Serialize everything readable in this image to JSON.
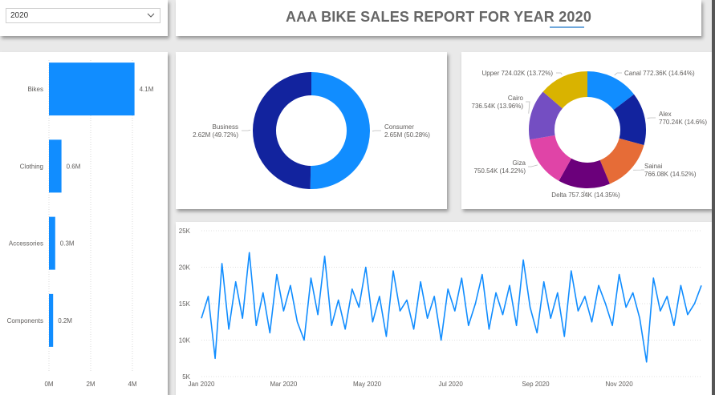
{
  "filter": {
    "selected_value": "2020"
  },
  "report_title": "AAA BIKE SALES REPORT FOR YEAR 2020",
  "colors": {
    "bar": "#118dff",
    "line": "#118dff",
    "consumer": "#118dff",
    "business": "#12239e"
  },
  "chart_data": [
    {
      "type": "bar",
      "orientation": "horizontal",
      "categories": [
        "Bikes",
        "Clothing",
        "Accessories",
        "Components"
      ],
      "values": [
        4.1,
        0.6,
        0.3,
        0.2
      ],
      "value_labels": [
        "4.1M",
        "0.6M",
        "0.3M",
        "0.2M"
      ],
      "x_ticks": [
        "0M",
        "2M",
        "4M"
      ],
      "xlim": [
        0,
        4
      ],
      "grid": true
    },
    {
      "type": "pie",
      "style": "donut",
      "slices": [
        {
          "name": "Consumer",
          "value": 2.65,
          "label": "2.65M (50.28%)",
          "color": "#118dff"
        },
        {
          "name": "Business",
          "value": 2.62,
          "label": "2.62M (49.72%)",
          "color": "#12239e"
        }
      ]
    },
    {
      "type": "pie",
      "style": "donut",
      "slices": [
        {
          "name": "Canal",
          "value": 772.36,
          "label": "772.36K (14.64%)",
          "color": "#118dff"
        },
        {
          "name": "Alex",
          "value": 770.24,
          "label": "770.24K (14.6%)",
          "color": "#12239e"
        },
        {
          "name": "Sainai",
          "value": 766.08,
          "label": "766.08K (14.52%)",
          "color": "#e66c37"
        },
        {
          "name": "Delta",
          "value": 757.34,
          "label": "757.34K (14.35%)",
          "color": "#6b007b"
        },
        {
          "name": "Giza",
          "value": 750.54,
          "label": "750.54K (14.22%)",
          "color": "#e044a7"
        },
        {
          "name": "Cairo",
          "value": 736.54,
          "label": "736.54K (13.96%)",
          "color": "#744ec2"
        },
        {
          "name": "Upper",
          "value": 724.02,
          "label": "724.02K (13.72%)",
          "color": "#d9b300"
        }
      ]
    },
    {
      "type": "line",
      "y_ticks": [
        "25K",
        "20K",
        "15K",
        "10K",
        "5K"
      ],
      "ylim": [
        5000,
        25000
      ],
      "x_ticks": [
        "Jan 2020",
        "Mar 2020",
        "May 2020",
        "Jul 2020",
        "Sep 2020",
        "Nov 2020"
      ],
      "grid": true,
      "x": [
        "2020-01-01",
        "2020-01-06",
        "2020-01-11",
        "2020-01-16",
        "2020-01-21",
        "2020-01-26",
        "2020-01-31",
        "2020-02-05",
        "2020-02-10",
        "2020-02-15",
        "2020-02-20",
        "2020-02-25",
        "2020-03-01",
        "2020-03-06",
        "2020-03-11",
        "2020-03-16",
        "2020-03-21",
        "2020-03-26",
        "2020-03-31",
        "2020-04-05",
        "2020-04-10",
        "2020-04-15",
        "2020-04-20",
        "2020-04-25",
        "2020-04-30",
        "2020-05-05",
        "2020-05-10",
        "2020-05-15",
        "2020-05-20",
        "2020-05-25",
        "2020-05-30",
        "2020-06-04",
        "2020-06-09",
        "2020-06-14",
        "2020-06-19",
        "2020-06-24",
        "2020-06-29",
        "2020-07-04",
        "2020-07-09",
        "2020-07-14",
        "2020-07-19",
        "2020-07-24",
        "2020-07-29",
        "2020-08-03",
        "2020-08-08",
        "2020-08-13",
        "2020-08-18",
        "2020-08-23",
        "2020-08-28",
        "2020-09-02",
        "2020-09-07",
        "2020-09-12",
        "2020-09-17",
        "2020-09-22",
        "2020-09-27",
        "2020-10-02",
        "2020-10-07",
        "2020-10-12",
        "2020-10-17",
        "2020-10-22",
        "2020-10-27",
        "2020-11-01",
        "2020-11-06",
        "2020-11-11",
        "2020-11-16",
        "2020-11-21",
        "2020-11-26",
        "2020-12-01",
        "2020-12-06",
        "2020-12-11",
        "2020-12-16",
        "2020-12-21",
        "2020-12-26",
        "2020-12-31"
      ],
      "y": [
        13000,
        16000,
        7500,
        20500,
        11500,
        18000,
        13000,
        22000,
        12000,
        16500,
        11000,
        19000,
        14000,
        17500,
        12500,
        10000,
        18500,
        13500,
        21500,
        12000,
        15500,
        11500,
        17000,
        14500,
        20000,
        12500,
        16000,
        10500,
        19500,
        14000,
        15500,
        11500,
        18000,
        13000,
        16000,
        10000,
        17000,
        14000,
        18500,
        12000,
        15000,
        19000,
        11500,
        16500,
        13500,
        17500,
        12000,
        21000,
        14500,
        11000,
        18000,
        13000,
        16500,
        10500,
        19500,
        14000,
        16000,
        12500,
        17500,
        15000,
        12000,
        19000,
        14500,
        16500,
        13000,
        7000,
        18500,
        14000,
        16000,
        12000,
        17500,
        13500,
        15000,
        17500
      ]
    }
  ]
}
